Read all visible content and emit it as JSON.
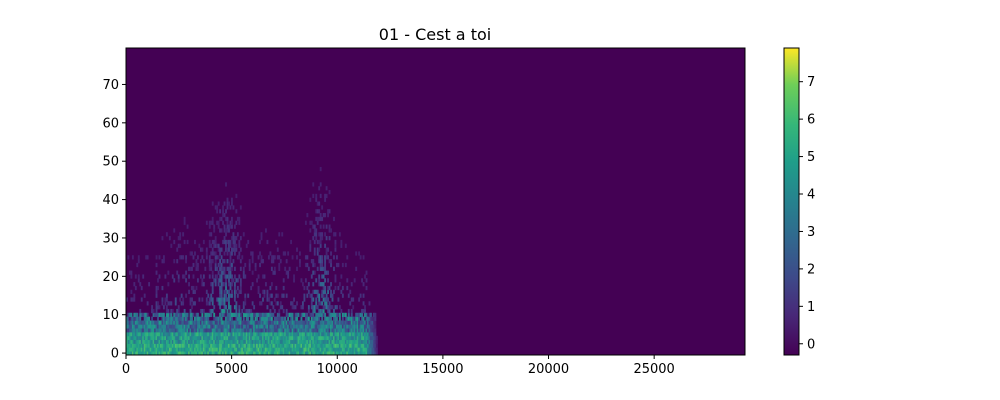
{
  "chart_data": {
    "type": "heatmap",
    "title": "01 - Cest a toi",
    "xlabel": "",
    "ylabel": "",
    "xlim": [
      0,
      29300
    ],
    "ylim": [
      -0.5,
      79.5
    ],
    "x_ticks": [
      0,
      5000,
      10000,
      15000,
      20000,
      25000
    ],
    "x_tick_labels": [
      "0",
      "5000",
      "10000",
      "15000",
      "20000",
      "25000"
    ],
    "y_ticks": [
      0,
      10,
      20,
      30,
      40,
      50,
      60,
      70
    ],
    "y_tick_labels": [
      "0",
      "10",
      "20",
      "30",
      "40",
      "50",
      "60",
      "70"
    ],
    "colormap": "viridis",
    "colorbar": {
      "range": [
        -0.3,
        7.9
      ],
      "ticks": [
        0,
        1,
        2,
        3,
        4,
        5,
        6,
        7
      ],
      "tick_labels": [
        "0",
        "1",
        "2",
        "3",
        "4",
        "5",
        "6",
        "7"
      ]
    },
    "background_value": -0.3,
    "signal_extent_x": [
      0,
      11900
    ],
    "grid": false,
    "legend": "none"
  }
}
